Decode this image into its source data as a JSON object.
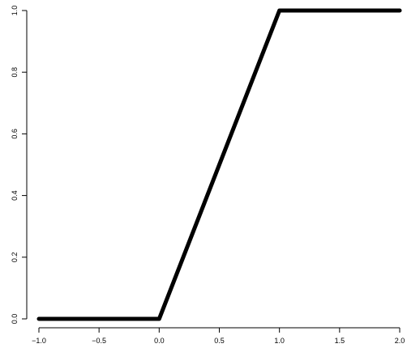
{
  "chart_data": {
    "type": "line",
    "title": "",
    "xlabel": "",
    "ylabel": "",
    "xlim": [
      -1.0,
      2.0
    ],
    "ylim": [
      0.0,
      1.0
    ],
    "x_ticks": [
      "-1.0",
      "-0.5",
      "0.0",
      "0.5",
      "1.0",
      "1.5",
      "2.0"
    ],
    "y_ticks": [
      "0.0",
      "0.2",
      "0.4",
      "0.6",
      "0.8",
      "1.0"
    ],
    "series": [
      {
        "color": "#000000",
        "x": [
          -1.0,
          0.0,
          1.0,
          2.0
        ],
        "y": [
          0.0,
          0.0,
          1.0,
          1.0
        ]
      }
    ],
    "grid": false,
    "legend": "none"
  }
}
